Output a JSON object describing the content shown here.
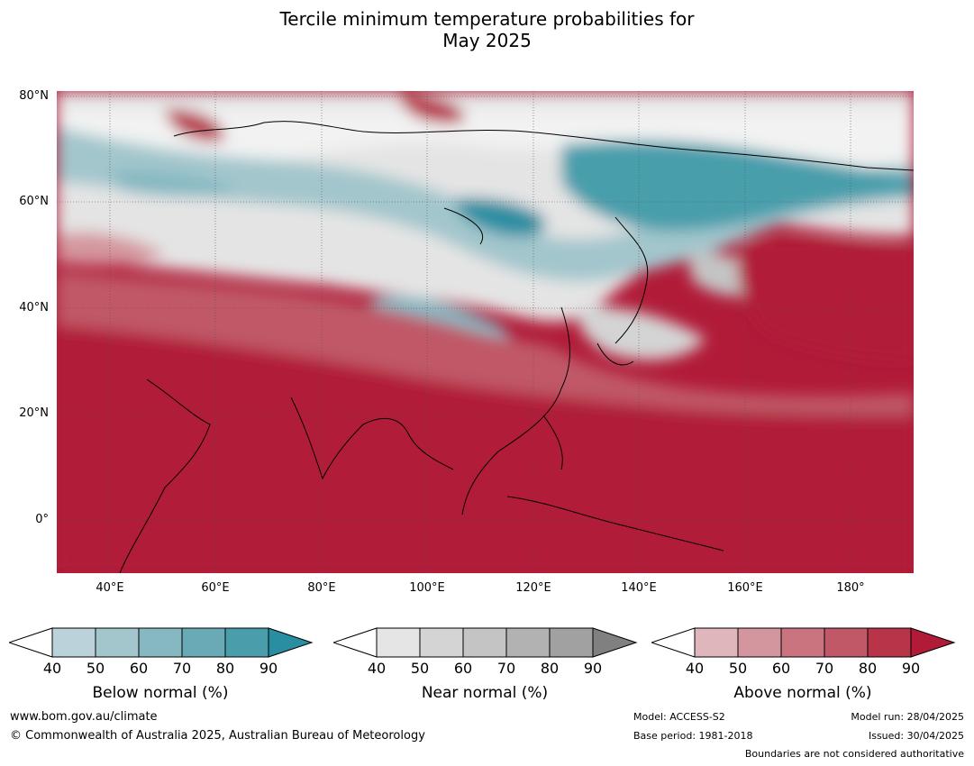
{
  "title": {
    "line1": "Tercile minimum temperature probabilities for",
    "line2": "May 2025"
  },
  "map": {
    "lat_labels": [
      "80°N",
      "60°N",
      "40°N",
      "20°N",
      "0°"
    ],
    "lon_labels": [
      "40°E",
      "60°E",
      "80°E",
      "100°E",
      "120°E",
      "140°E",
      "160°E",
      "180°"
    ]
  },
  "colorbars": [
    {
      "title": "Below normal (%)",
      "ticks": [
        "40",
        "50",
        "60",
        "70",
        "80",
        "90"
      ],
      "colors": [
        "#ffffff",
        "#bcd2da",
        "#a2c6cc",
        "#86b8c2",
        "#6aaab7",
        "#4a9eac",
        "#2a8ea2"
      ]
    },
    {
      "title": "Near normal (%)",
      "ticks": [
        "40",
        "50",
        "60",
        "70",
        "80",
        "90"
      ],
      "colors": [
        "#ffffff",
        "#e5e5e5",
        "#d4d4d4",
        "#c4c4c4",
        "#b2b2b2",
        "#a1a1a1",
        "#808080"
      ]
    },
    {
      "title": "Above normal (%)",
      "ticks": [
        "40",
        "50",
        "60",
        "70",
        "80",
        "90"
      ],
      "colors": [
        "#ffffff",
        "#dfb6bc",
        "#d4969e",
        "#ca7480",
        "#c05868",
        "#b83448",
        "#b11b38"
      ]
    }
  ],
  "footer": {
    "website": "www.bom.gov.au/climate",
    "copyright": "© Commonwealth of Australia 2025, Australian Bureau of Meteorology",
    "model": "Model: ACCESS-S2",
    "base_period": "Base period: 1981-2018",
    "model_run": "Model run: 28/04/2025",
    "issued": "Issued: 30/04/2025",
    "disclaimer": "Boundaries are not considered authoritative"
  }
}
